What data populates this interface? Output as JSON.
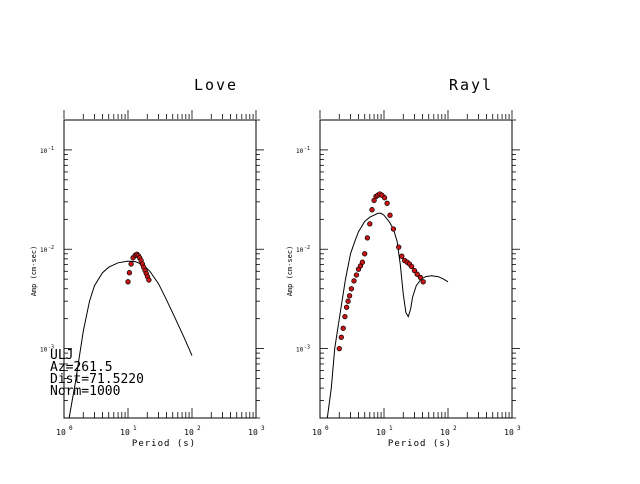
{
  "chart_data": [
    {
      "type": "scatter",
      "title": "Love",
      "xlabel": "Period (s)",
      "ylabel": "Amp (cm-sec)",
      "x_scale": "log",
      "y_scale": "log",
      "xlim": [
        1,
        1000
      ],
      "ylim": [
        0.0002,
        0.2
      ],
      "x_ticks": [
        {
          "value": 1,
          "base": "10",
          "exp": "0"
        },
        {
          "value": 10,
          "base": "10",
          "exp": "1"
        },
        {
          "value": 100,
          "base": "10",
          "exp": "2"
        },
        {
          "value": 1000,
          "base": "10",
          "exp": "3"
        }
      ],
      "y_ticks": [
        {
          "value": 0.1,
          "base": "10",
          "exp": "-1"
        },
        {
          "value": 0.01,
          "base": "10",
          "exp": "-2"
        },
        {
          "value": 0.001,
          "base": "10",
          "exp": "-3"
        }
      ],
      "annotations": [
        "ULJ",
        "Az=261.5",
        "Dist=71.5220",
        "Norm=1000"
      ],
      "series": [
        {
          "kind": "points",
          "color": "#c81414",
          "x": [
            10.0,
            10.5,
            11.2,
            12.0,
            13.0,
            13.8,
            14.5,
            15.2,
            16.0,
            16.8,
            17.6,
            18.5,
            19.3,
            20.2,
            21.2
          ],
          "y": [
            0.0047,
            0.0058,
            0.0071,
            0.0082,
            0.0087,
            0.0089,
            0.0086,
            0.0082,
            0.0077,
            0.0071,
            0.0066,
            0.0061,
            0.0057,
            0.0053,
            0.0049
          ]
        },
        {
          "kind": "line",
          "color": "#000000",
          "x": [
            1.2,
            1.5,
            2,
            2.5,
            3,
            4,
            5,
            7,
            10,
            13,
            17,
            22,
            30,
            40,
            55,
            75,
            100
          ],
          "y": [
            0.0002,
            0.00045,
            0.0015,
            0.003,
            0.0043,
            0.0058,
            0.0066,
            0.0073,
            0.0076,
            0.0075,
            0.007,
            0.006,
            0.0045,
            0.0031,
            0.002,
            0.0013,
            0.00085
          ]
        }
      ]
    },
    {
      "type": "scatter",
      "title": "Rayl",
      "xlabel": "Period (s)",
      "ylabel": "Amp (cm-sec)",
      "x_scale": "log",
      "y_scale": "log",
      "xlim": [
        1,
        1000
      ],
      "ylim": [
        0.0002,
        0.2
      ],
      "x_ticks": [
        {
          "value": 1,
          "base": "10",
          "exp": "0"
        },
        {
          "value": 10,
          "base": "10",
          "exp": "1"
        },
        {
          "value": 100,
          "base": "10",
          "exp": "2"
        },
        {
          "value": 1000,
          "base": "10",
          "exp": "3"
        }
      ],
      "y_ticks": [
        {
          "value": 0.1,
          "base": "10",
          "exp": "-1"
        },
        {
          "value": 0.01,
          "base": "10",
          "exp": "-2"
        },
        {
          "value": 0.001,
          "base": "10",
          "exp": "-3"
        }
      ],
      "series": [
        {
          "kind": "points",
          "color": "#c81414",
          "x": [
            2.0,
            2.15,
            2.3,
            2.45,
            2.6,
            2.75,
            2.9,
            3.1,
            3.4,
            3.7,
            4.0,
            4.3,
            4.6,
            5.0,
            5.5,
            6.0,
            6.5,
            7.0,
            7.5,
            8.0,
            8.6,
            9.3,
            10.2,
            11.2,
            12.4,
            14.0,
            17.0,
            19.0,
            21.0,
            23.0,
            25.0,
            27.0,
            30.0,
            33.0,
            37.0,
            41.0
          ],
          "y": [
            0.001,
            0.0013,
            0.0016,
            0.0021,
            0.0026,
            0.003,
            0.0034,
            0.004,
            0.0048,
            0.0055,
            0.0063,
            0.0068,
            0.0074,
            0.009,
            0.013,
            0.018,
            0.025,
            0.031,
            0.034,
            0.035,
            0.036,
            0.035,
            0.033,
            0.029,
            0.022,
            0.016,
            0.0105,
            0.0085,
            0.0077,
            0.0074,
            0.0071,
            0.0067,
            0.0061,
            0.0056,
            0.0052,
            0.0047
          ]
        },
        {
          "kind": "line",
          "color": "#000000",
          "x": [
            1.3,
            1.5,
            1.7,
            2,
            2.5,
            3,
            3.5,
            4,
            5,
            6,
            7,
            8,
            9,
            10,
            12,
            14,
            16,
            18,
            20,
            22,
            24,
            26,
            28,
            32,
            38,
            45,
            55,
            70,
            85,
            100
          ],
          "y": [
            0.0002,
            0.0004,
            0.001,
            0.002,
            0.005,
            0.009,
            0.012,
            0.015,
            0.019,
            0.021,
            0.022,
            0.023,
            0.023,
            0.022,
            0.019,
            0.016,
            0.012,
            0.007,
            0.0035,
            0.0023,
            0.0021,
            0.0025,
            0.0033,
            0.0043,
            0.005,
            0.0053,
            0.0054,
            0.0053,
            0.005,
            0.0047
          ]
        }
      ]
    }
  ]
}
